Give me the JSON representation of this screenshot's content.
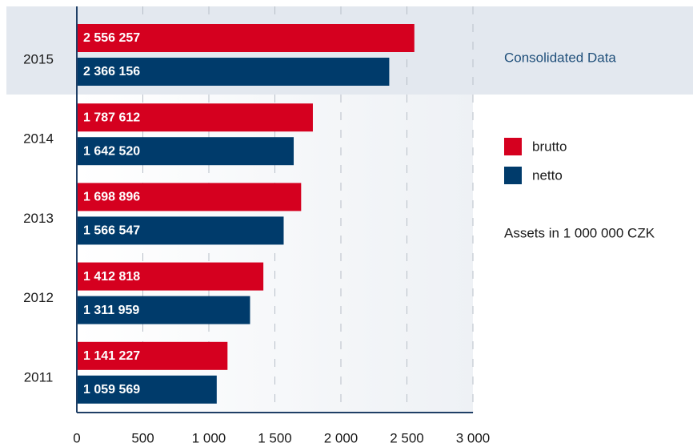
{
  "chart_data": {
    "type": "bar",
    "orientation": "horizontal",
    "categories": [
      "2015",
      "2014",
      "2013",
      "2012",
      "2011"
    ],
    "series": [
      {
        "name": "brutto",
        "color": "#d5001f",
        "values": [
          2556.257,
          1787.612,
          1698.896,
          1412.818,
          1141.227
        ],
        "value_labels": [
          "2 556 257",
          "1 787 612",
          "1 698 896",
          "1 412 818",
          "1 141 227"
        ]
      },
      {
        "name": "netto",
        "color": "#003b6b",
        "values": [
          2366.156,
          1642.52,
          1566.547,
          1311.959,
          1059.569
        ],
        "value_labels": [
          "2 366 156",
          "1 642 520",
          "1 566 547",
          "1 311 959",
          "1 059 569"
        ]
      }
    ],
    "xlim": [
      0,
      3000
    ],
    "xticks": [
      0,
      500,
      {
        "value": 1000,
        "label": "1 000"
      },
      {
        "value": 1500,
        "label": "1 500"
      },
      {
        "value": 2000,
        "label": "2 000"
      },
      {
        "value": 2500,
        "label": "2 500"
      },
      {
        "value": 3000,
        "label": "3 000"
      }
    ],
    "grid": true,
    "annotations": [
      "Consolidated Data",
      "Assets in 1 000 000 CZK"
    ]
  }
}
